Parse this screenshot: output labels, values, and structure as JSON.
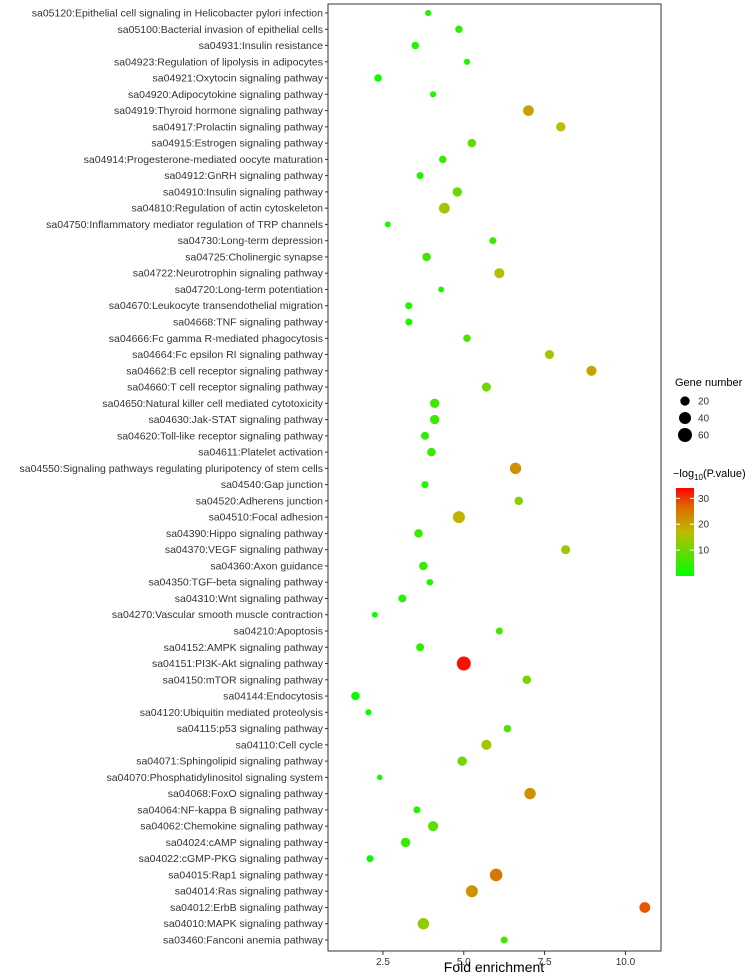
{
  "chart_data": {
    "type": "scatter",
    "xlabel": "Fold enrichment",
    "xlim": [
      0.8,
      11.1
    ],
    "xticks": [
      2.5,
      5.0,
      7.5,
      10.0
    ],
    "xtick_labels": [
      "2.5",
      "5.0",
      "7.5",
      "10.0"
    ],
    "grid": false,
    "legend": {
      "size_title": "Gene number",
      "size_values": [
        20,
        40,
        60
      ],
      "color_title_prefix": "−log",
      "color_title_sub": "10",
      "color_title_suffix": "(P.value)",
      "color_ticks": [
        10,
        20,
        30
      ],
      "color_range": [
        0,
        34
      ],
      "color_low": "#00ff00",
      "color_high": "#ff0000",
      "placement": "right"
    },
    "points": [
      {
        "term": "sa05120:Epithelial cell signaling in Helicobacter pylori infection",
        "fold": 3.9,
        "genes": 5,
        "logp": 3
      },
      {
        "term": "sa05100:Bacterial invasion of epithelial cells",
        "fold": 4.85,
        "genes": 10,
        "logp": 5
      },
      {
        "term": "sa04931:Insulin resistance",
        "fold": 3.5,
        "genes": 10,
        "logp": 3
      },
      {
        "term": "sa04923:Regulation of lipolysis in adipocytes",
        "fold": 5.1,
        "genes": 5,
        "logp": 3
      },
      {
        "term": "sa04921:Oxytocin signaling pathway",
        "fold": 2.35,
        "genes": 10,
        "logp": 1
      },
      {
        "term": "sa04920:Adipocytokine signaling pathway",
        "fold": 4.05,
        "genes": 5,
        "logp": 3
      },
      {
        "term": "sa04919:Thyroid hormone signaling pathway",
        "fold": 7.0,
        "genes": 30,
        "logp": 20
      },
      {
        "term": "sa04917:Prolactin signaling pathway",
        "fold": 8.0,
        "genes": 20,
        "logp": 17
      },
      {
        "term": "sa04915:Estrogen signaling pathway",
        "fold": 5.25,
        "genes": 15,
        "logp": 9
      },
      {
        "term": "sa04914:Progesterone-mediated oocyte maturation",
        "fold": 4.35,
        "genes": 10,
        "logp": 5
      },
      {
        "term": "sa04912:GnRH signaling pathway",
        "fold": 3.65,
        "genes": 8,
        "logp": 3
      },
      {
        "term": "sa04910:Insulin signaling pathway",
        "fold": 4.8,
        "genes": 20,
        "logp": 9
      },
      {
        "term": "sa04810:Regulation of actin cytoskeleton",
        "fold": 4.4,
        "genes": 30,
        "logp": 14
      },
      {
        "term": "sa04750:Inflammatory mediator regulation of TRP channels",
        "fold": 2.65,
        "genes": 4,
        "logp": 2
      },
      {
        "term": "sa04730:Long-term depression",
        "fold": 5.9,
        "genes": 8,
        "logp": 5
      },
      {
        "term": "sa04725:Cholinergic synapse",
        "fold": 3.85,
        "genes": 15,
        "logp": 6
      },
      {
        "term": "sa04722:Neurotrophin signaling pathway",
        "fold": 6.1,
        "genes": 25,
        "logp": 16
      },
      {
        "term": "sa04720:Long-term potentiation",
        "fold": 4.3,
        "genes": 4,
        "logp": 2
      },
      {
        "term": "sa04670:Leukocyte transendothelial migration",
        "fold": 3.3,
        "genes": 8,
        "logp": 3
      },
      {
        "term": "sa04668:TNF signaling pathway",
        "fold": 3.3,
        "genes": 8,
        "logp": 3
      },
      {
        "term": "sa04666:Fc gamma R-mediated phagocytosis",
        "fold": 5.1,
        "genes": 10,
        "logp": 7
      },
      {
        "term": "sa04664:Fc epsilon RI signaling pathway",
        "fold": 7.65,
        "genes": 18,
        "logp": 14
      },
      {
        "term": "sa04662:B cell receptor signaling pathway",
        "fold": 8.95,
        "genes": 25,
        "logp": 20
      },
      {
        "term": "sa04660:T cell receptor signaling pathway",
        "fold": 5.7,
        "genes": 18,
        "logp": 10
      },
      {
        "term": "sa04650:Natural killer cell mediated cytotoxicity",
        "fold": 4.1,
        "genes": 20,
        "logp": 6
      },
      {
        "term": "sa04630:Jak-STAT signaling pathway",
        "fold": 4.1,
        "genes": 20,
        "logp": 6
      },
      {
        "term": "sa04620:Toll-like receptor signaling pathway",
        "fold": 3.8,
        "genes": 12,
        "logp": 4
      },
      {
        "term": "sa04611:Platelet activation",
        "fold": 4.0,
        "genes": 15,
        "logp": 5
      },
      {
        "term": "sa04550:Signaling pathways regulating pluripotency of stem cells",
        "fold": 6.6,
        "genes": 35,
        "logp": 22
      },
      {
        "term": "sa04540:Gap junction",
        "fold": 3.8,
        "genes": 8,
        "logp": 3
      },
      {
        "term": "sa04520:Adherens junction",
        "fold": 6.7,
        "genes": 15,
        "logp": 12
      },
      {
        "term": "sa04510:Focal adhesion",
        "fold": 4.85,
        "genes": 40,
        "logp": 18
      },
      {
        "term": "sa04390:Hippo signaling pathway",
        "fold": 3.6,
        "genes": 15,
        "logp": 5
      },
      {
        "term": "sa04370:VEGF signaling pathway",
        "fold": 8.15,
        "genes": 18,
        "logp": 14
      },
      {
        "term": "sa04360:Axon guidance",
        "fold": 3.75,
        "genes": 15,
        "logp": 5
      },
      {
        "term": "sa04350:TGF-beta signaling pathway",
        "fold": 3.95,
        "genes": 6,
        "logp": 2
      },
      {
        "term": "sa04310:Wnt signaling pathway",
        "fold": 3.1,
        "genes": 12,
        "logp": 3
      },
      {
        "term": "sa04270:Vascular smooth muscle contraction",
        "fold": 2.25,
        "genes": 4,
        "logp": 1
      },
      {
        "term": "sa04210:Apoptosis",
        "fold": 6.1,
        "genes": 8,
        "logp": 6
      },
      {
        "term": "sa04152:AMPK signaling pathway",
        "fold": 3.65,
        "genes": 12,
        "logp": 4
      },
      {
        "term": "sa04151:PI3K-Akt signaling pathway",
        "fold": 5.0,
        "genes": 60,
        "logp": 33
      },
      {
        "term": "sa04150:mTOR signaling pathway",
        "fold": 6.95,
        "genes": 15,
        "logp": 10
      },
      {
        "term": "sa04144:Endocytosis",
        "fold": 1.65,
        "genes": 15,
        "logp": 1
      },
      {
        "term": "sa04120:Ubiquitin mediated proteolysis",
        "fold": 2.05,
        "genes": 5,
        "logp": 1
      },
      {
        "term": "sa04115:p53 signaling pathway",
        "fold": 6.35,
        "genes": 10,
        "logp": 7
      },
      {
        "term": "sa04110:Cell cycle",
        "fold": 5.7,
        "genes": 25,
        "logp": 15
      },
      {
        "term": "sa04071:Sphingolipid signaling pathway",
        "fold": 4.95,
        "genes": 20,
        "logp": 10
      },
      {
        "term": "sa04070:Phosphatidylinositol signaling system",
        "fold": 2.4,
        "genes": 3,
        "logp": 1
      },
      {
        "term": "sa04068:FoxO signaling pathway",
        "fold": 7.05,
        "genes": 35,
        "logp": 22
      },
      {
        "term": "sa04064:NF-kappa B signaling pathway",
        "fold": 3.55,
        "genes": 8,
        "logp": 3
      },
      {
        "term": "sa04062:Chemokine signaling pathway",
        "fold": 4.05,
        "genes": 25,
        "logp": 8
      },
      {
        "term": "sa04024:cAMP signaling pathway",
        "fold": 3.2,
        "genes": 20,
        "logp": 5
      },
      {
        "term": "sa04022:cGMP-PKG signaling pathway",
        "fold": 2.1,
        "genes": 8,
        "logp": 1
      },
      {
        "term": "sa04015:Rap1 signaling pathway",
        "fold": 6.0,
        "genes": 45,
        "logp": 25
      },
      {
        "term": "sa04014:Ras signaling pathway",
        "fold": 5.25,
        "genes": 40,
        "logp": 22
      },
      {
        "term": "sa04012:ErbB signaling pathway",
        "fold": 10.6,
        "genes": 30,
        "logp": 28
      },
      {
        "term": "sa04010:MAPK signaling pathway",
        "fold": 3.75,
        "genes": 35,
        "logp": 13
      },
      {
        "term": "sa03460:Fanconi anemia pathway",
        "fold": 6.25,
        "genes": 8,
        "logp": 6
      }
    ]
  }
}
